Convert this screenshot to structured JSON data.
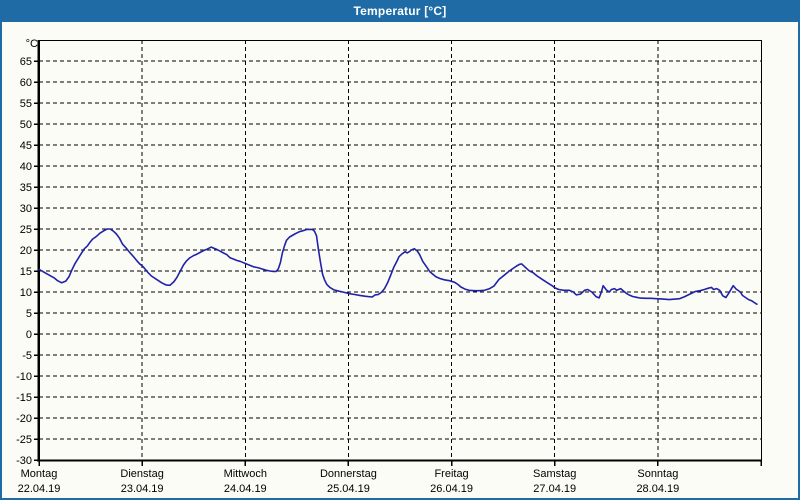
{
  "window": {
    "title": "Temperatur [°C]",
    "title_bar_color": "#1e6ba6",
    "border_color": "#1e6ba6",
    "background_color": "#fcfcf6"
  },
  "chart_data": {
    "type": "line",
    "title": "Temperatur [°C]",
    "ylabel": "°C",
    "ylim": [
      -30,
      70
    ],
    "y_tick_step": 5,
    "y_tick_labeled_min": -30,
    "y_tick_labeled_max": 65,
    "xlim_days": [
      0,
      7
    ],
    "grid": "dashed",
    "legend": "none",
    "line_color": "#2121aa",
    "x_days": [
      {
        "name": "Montag",
        "date": "22.04.19"
      },
      {
        "name": "Dienstag",
        "date": "23.04.19"
      },
      {
        "name": "Mittwoch",
        "date": "24.04.19"
      },
      {
        "name": "Donnerstag",
        "date": "25.04.19"
      },
      {
        "name": "Freitag",
        "date": "26.04.19"
      },
      {
        "name": "Samstag",
        "date": "27.04.19"
      },
      {
        "name": "Sonntag",
        "date": "28.04.19"
      }
    ],
    "series": [
      {
        "name": "Temperatur",
        "unit": "°C",
        "x_unit": "days_since_monday_00h",
        "points": [
          [
            0.0,
            15.4
          ],
          [
            0.05,
            14.7
          ],
          [
            0.1,
            14.0
          ],
          [
            0.15,
            13.3
          ],
          [
            0.18,
            12.7
          ],
          [
            0.22,
            12.2
          ],
          [
            0.26,
            12.6
          ],
          [
            0.29,
            13.6
          ],
          [
            0.32,
            15.3
          ],
          [
            0.35,
            16.8
          ],
          [
            0.38,
            18.0
          ],
          [
            0.41,
            19.2
          ],
          [
            0.44,
            20.3
          ],
          [
            0.47,
            21.0
          ],
          [
            0.49,
            21.7
          ],
          [
            0.52,
            22.6
          ],
          [
            0.56,
            23.3
          ],
          [
            0.59,
            24.0
          ],
          [
            0.63,
            24.6
          ],
          [
            0.66,
            25.0
          ],
          [
            0.69,
            25.0
          ],
          [
            0.72,
            24.5
          ],
          [
            0.75,
            23.8
          ],
          [
            0.78,
            22.8
          ],
          [
            0.81,
            21.4
          ],
          [
            0.85,
            20.3
          ],
          [
            0.88,
            19.4
          ],
          [
            0.92,
            18.3
          ],
          [
            0.95,
            17.4
          ],
          [
            0.98,
            16.6
          ],
          [
            1.01,
            16.0
          ],
          [
            1.05,
            14.8
          ],
          [
            1.09,
            13.8
          ],
          [
            1.14,
            13.0
          ],
          [
            1.19,
            12.2
          ],
          [
            1.23,
            11.7
          ],
          [
            1.27,
            11.6
          ],
          [
            1.31,
            12.5
          ],
          [
            1.34,
            13.6
          ],
          [
            1.37,
            15.0
          ],
          [
            1.4,
            16.4
          ],
          [
            1.43,
            17.4
          ],
          [
            1.46,
            18.1
          ],
          [
            1.5,
            18.7
          ],
          [
            1.53,
            19.0
          ],
          [
            1.56,
            19.4
          ],
          [
            1.6,
            19.9
          ],
          [
            1.63,
            20.2
          ],
          [
            1.67,
            20.7
          ],
          [
            1.72,
            20.2
          ],
          [
            1.75,
            19.8
          ],
          [
            1.78,
            19.4
          ],
          [
            1.82,
            18.9
          ],
          [
            1.85,
            18.2
          ],
          [
            1.89,
            17.8
          ],
          [
            1.92,
            17.5
          ],
          [
            1.95,
            17.3
          ],
          [
            1.97,
            17.1
          ],
          [
            2.01,
            16.7
          ],
          [
            2.04,
            16.4
          ],
          [
            2.08,
            16.0
          ],
          [
            2.12,
            15.8
          ],
          [
            2.16,
            15.5
          ],
          [
            2.2,
            15.2
          ],
          [
            2.24,
            15.0
          ],
          [
            2.27,
            14.9
          ],
          [
            2.3,
            14.9
          ],
          [
            2.32,
            15.5
          ],
          [
            2.34,
            17.0
          ],
          [
            2.36,
            19.3
          ],
          [
            2.38,
            21.0
          ],
          [
            2.4,
            22.3
          ],
          [
            2.43,
            23.1
          ],
          [
            2.48,
            23.8
          ],
          [
            2.52,
            24.3
          ],
          [
            2.56,
            24.6
          ],
          [
            2.6,
            24.9
          ],
          [
            2.65,
            24.9
          ],
          [
            2.67,
            24.5
          ],
          [
            2.69,
            23.4
          ],
          [
            2.71,
            20.0
          ],
          [
            2.73,
            16.9
          ],
          [
            2.75,
            14.2
          ],
          [
            2.77,
            12.8
          ],
          [
            2.79,
            11.8
          ],
          [
            2.82,
            11.1
          ],
          [
            2.86,
            10.5
          ],
          [
            2.91,
            10.2
          ],
          [
            2.96,
            9.9
          ],
          [
            3.01,
            9.6
          ],
          [
            3.06,
            9.4
          ],
          [
            3.11,
            9.2
          ],
          [
            3.16,
            9.0
          ],
          [
            3.19,
            8.9
          ],
          [
            3.23,
            8.8
          ],
          [
            3.26,
            9.3
          ],
          [
            3.29,
            9.4
          ],
          [
            3.32,
            9.9
          ],
          [
            3.35,
            10.8
          ],
          [
            3.38,
            12.2
          ],
          [
            3.41,
            14.0
          ],
          [
            3.44,
            15.9
          ],
          [
            3.47,
            17.3
          ],
          [
            3.49,
            18.4
          ],
          [
            3.52,
            19.1
          ],
          [
            3.55,
            19.6
          ],
          [
            3.57,
            19.3
          ],
          [
            3.59,
            19.6
          ],
          [
            3.61,
            20.0
          ],
          [
            3.64,
            20.3
          ],
          [
            3.67,
            19.7
          ],
          [
            3.69,
            18.9
          ],
          [
            3.72,
            17.3
          ],
          [
            3.76,
            15.9
          ],
          [
            3.79,
            14.8
          ],
          [
            3.82,
            14.2
          ],
          [
            3.85,
            13.6
          ],
          [
            3.89,
            13.2
          ],
          [
            3.93,
            12.9
          ],
          [
            3.98,
            12.7
          ],
          [
            4.03,
            12.3
          ],
          [
            4.06,
            11.8
          ],
          [
            4.09,
            11.2
          ],
          [
            4.13,
            10.7
          ],
          [
            4.17,
            10.4
          ],
          [
            4.22,
            10.3
          ],
          [
            4.27,
            10.3
          ],
          [
            4.32,
            10.4
          ],
          [
            4.37,
            10.8
          ],
          [
            4.41,
            11.4
          ],
          [
            4.46,
            13.0
          ],
          [
            4.51,
            14.0
          ],
          [
            4.56,
            15.0
          ],
          [
            4.6,
            15.7
          ],
          [
            4.63,
            16.2
          ],
          [
            4.66,
            16.6
          ],
          [
            4.68,
            16.7
          ],
          [
            4.71,
            16.0
          ],
          [
            4.75,
            15.1
          ],
          [
            4.79,
            14.6
          ],
          [
            4.83,
            13.8
          ],
          [
            4.88,
            13.0
          ],
          [
            4.93,
            12.2
          ],
          [
            4.98,
            11.4
          ],
          [
            5.0,
            11.0
          ],
          [
            5.04,
            10.6
          ],
          [
            5.09,
            10.4
          ],
          [
            5.14,
            10.4
          ],
          [
            5.18,
            10.0
          ],
          [
            5.21,
            9.3
          ],
          [
            5.25,
            9.5
          ],
          [
            5.29,
            10.4
          ],
          [
            5.32,
            10.6
          ],
          [
            5.36,
            10.0
          ],
          [
            5.4,
            8.9
          ],
          [
            5.43,
            8.6
          ],
          [
            5.45,
            9.8
          ],
          [
            5.47,
            11.5
          ],
          [
            5.5,
            10.5
          ],
          [
            5.53,
            10.0
          ],
          [
            5.55,
            10.6
          ],
          [
            5.58,
            10.8
          ],
          [
            5.6,
            10.4
          ],
          [
            5.64,
            10.8
          ],
          [
            5.67,
            10.2
          ],
          [
            5.7,
            9.6
          ],
          [
            5.73,
            9.2
          ],
          [
            5.76,
            8.9
          ],
          [
            5.82,
            8.6
          ],
          [
            5.88,
            8.5
          ],
          [
            5.93,
            8.5
          ],
          [
            5.99,
            8.4
          ],
          [
            6.05,
            8.3
          ],
          [
            6.11,
            8.2
          ],
          [
            6.17,
            8.3
          ],
          [
            6.21,
            8.4
          ],
          [
            6.26,
            8.9
          ],
          [
            6.31,
            9.5
          ],
          [
            6.36,
            10.1
          ],
          [
            6.41,
            10.3
          ],
          [
            6.45,
            10.6
          ],
          [
            6.49,
            10.9
          ],
          [
            6.52,
            11.1
          ],
          [
            6.54,
            10.6
          ],
          [
            6.57,
            10.8
          ],
          [
            6.6,
            10.4
          ],
          [
            6.63,
            9.1
          ],
          [
            6.66,
            8.7
          ],
          [
            6.69,
            9.8
          ],
          [
            6.73,
            11.5
          ],
          [
            6.76,
            10.7
          ],
          [
            6.8,
            10.0
          ],
          [
            6.82,
            9.2
          ],
          [
            6.85,
            8.7
          ],
          [
            6.88,
            8.2
          ],
          [
            6.91,
            7.9
          ],
          [
            6.94,
            7.4
          ],
          [
            6.96,
            7.1
          ]
        ]
      }
    ]
  }
}
